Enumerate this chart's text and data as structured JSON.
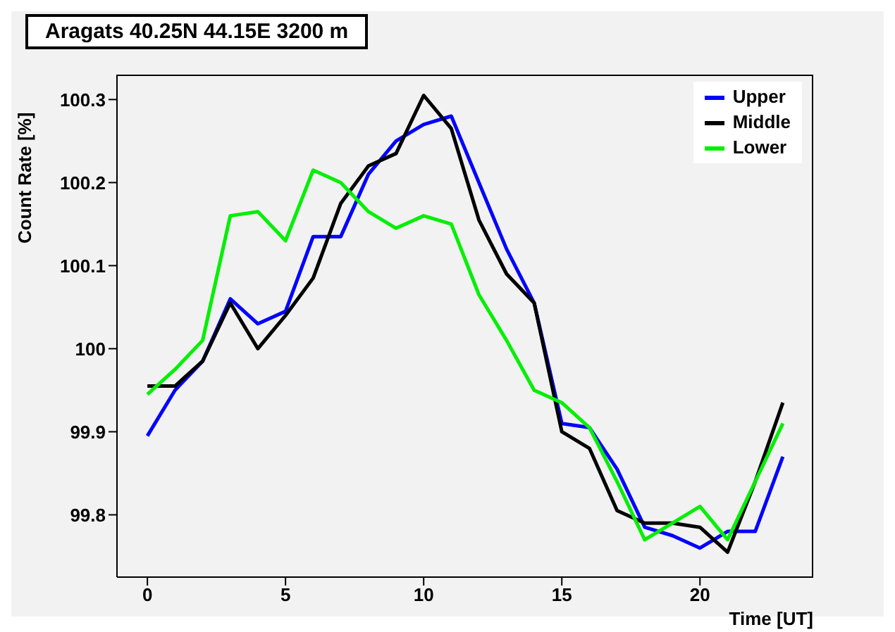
{
  "chart_data": {
    "type": "line",
    "title": "Aragats 40.25N 44.15E 3200 m",
    "xlabel": "Time [UT]",
    "ylabel": "Count Rate [%]",
    "x": [
      0,
      1,
      2,
      3,
      4,
      5,
      6,
      7,
      8,
      9,
      10,
      11,
      12,
      13,
      14,
      15,
      16,
      17,
      18,
      19,
      20,
      21,
      22,
      23
    ],
    "series": [
      {
        "name": "Upper",
        "color": "#0000ff",
        "values": [
          99.895,
          99.95,
          99.985,
          100.06,
          100.03,
          100.045,
          100.135,
          100.135,
          100.21,
          100.25,
          100.27,
          100.28,
          100.2,
          100.12,
          100.055,
          99.91,
          99.905,
          99.855,
          99.785,
          99.775,
          99.76,
          99.78,
          99.78,
          99.87
        ]
      },
      {
        "name": "Middle",
        "color": "#000000",
        "values": [
          99.955,
          99.955,
          99.985,
          100.055,
          100.0,
          100.04,
          100.085,
          100.175,
          100.22,
          100.235,
          100.305,
          100.265,
          100.155,
          100.09,
          100.055,
          99.9,
          99.88,
          99.805,
          99.79,
          99.79,
          99.785,
          99.755,
          99.84,
          99.935
        ]
      },
      {
        "name": "Lower",
        "color": "#00ee00",
        "values": [
          99.945,
          99.975,
          100.01,
          100.16,
          100.165,
          100.13,
          100.215,
          100.2,
          100.165,
          100.145,
          100.16,
          100.15,
          100.065,
          100.01,
          99.95,
          99.935,
          99.905,
          99.84,
          99.77,
          99.79,
          99.81,
          99.77,
          99.84,
          99.91
        ]
      }
    ],
    "xlim": [
      -1.1,
      24.1
    ],
    "xticks": [
      0,
      5,
      10,
      15,
      20
    ],
    "ylim": [
      99.725,
      100.33
    ],
    "yticks": [
      99.8,
      99.9,
      100,
      100.1,
      100.2,
      100.3
    ],
    "grid": false,
    "legend": "top right",
    "marker": "none",
    "line_style": "solid"
  }
}
